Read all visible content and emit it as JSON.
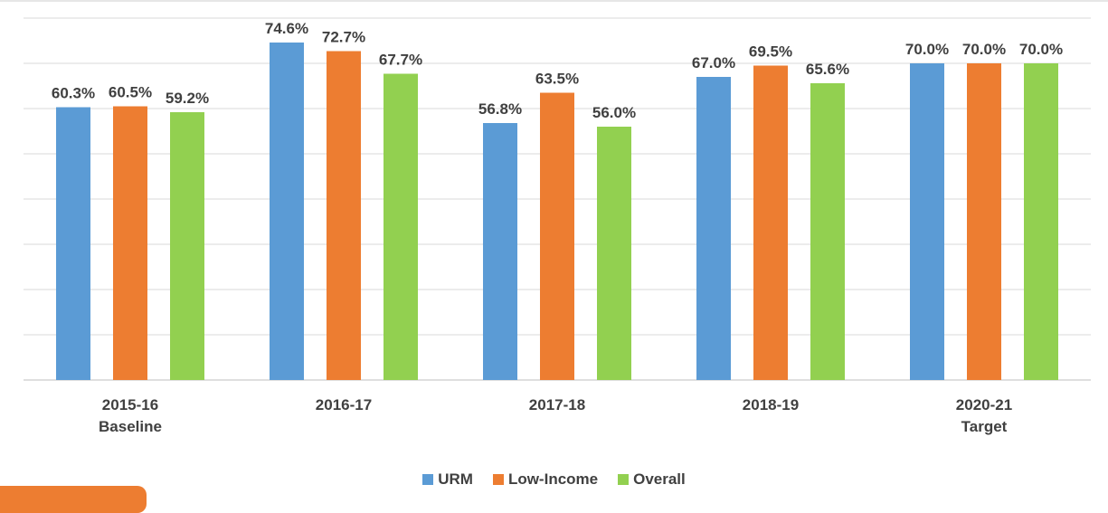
{
  "chart_data": {
    "type": "bar",
    "categories": [
      "2015-16\nBaseline",
      "2016-17",
      "2017-18",
      "2018-19",
      "2020-21\nTarget"
    ],
    "series": [
      {
        "name": "URM",
        "color": "#5b9bd5",
        "values": [
          60.3,
          74.6,
          56.8,
          67.0,
          70.0
        ],
        "value_labels": [
          "60.3%",
          "74.6%",
          "56.8%",
          "67.0%",
          "70.0%"
        ]
      },
      {
        "name": "Low-Income",
        "color": "#ed7d31",
        "values": [
          60.5,
          72.7,
          63.5,
          69.5,
          70.0
        ],
        "value_labels": [
          "60.5%",
          "72.7%",
          "63.5%",
          "69.5%",
          "70.0%"
        ]
      },
      {
        "name": "Overall",
        "color": "#92d050",
        "values": [
          59.2,
          67.7,
          56.0,
          65.6,
          70.0
        ],
        "value_labels": [
          "59.2%",
          "67.7%",
          "56.0%",
          "65.6%",
          "70.0%"
        ]
      }
    ],
    "ylim": [
      0,
      80
    ],
    "yticks": [
      0,
      10,
      20,
      30,
      40,
      50,
      60,
      70,
      80
    ],
    "grid": true,
    "legend": "bottom"
  }
}
